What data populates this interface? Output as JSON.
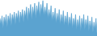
{
  "chart_data": {
    "type": "area",
    "values": [
      34,
      29,
      36,
      26,
      35,
      30,
      37,
      27,
      36,
      31,
      38,
      28,
      37,
      32,
      39,
      29,
      38,
      33,
      40,
      30,
      39,
      34,
      41,
      31,
      40,
      35,
      43,
      32,
      42,
      36,
      45,
      33,
      43,
      37,
      46,
      34,
      44,
      38,
      47,
      35,
      45,
      39,
      48,
      36,
      43,
      37,
      46,
      34,
      41,
      35,
      44,
      32,
      39,
      33,
      42,
      30,
      38,
      32,
      41,
      29,
      37,
      31,
      40,
      28,
      36,
      30,
      39,
      27,
      35,
      29,
      38,
      26,
      34,
      28,
      37,
      25,
      33,
      27,
      36,
      24,
      34,
      28,
      37,
      25,
      33,
      27,
      36,
      24,
      32,
      26,
      35,
      23,
      31,
      25,
      34,
      22
    ],
    "color": "#5ba3d0",
    "ylim": [
      20,
      48.5
    ],
    "tick_labels": false
  }
}
